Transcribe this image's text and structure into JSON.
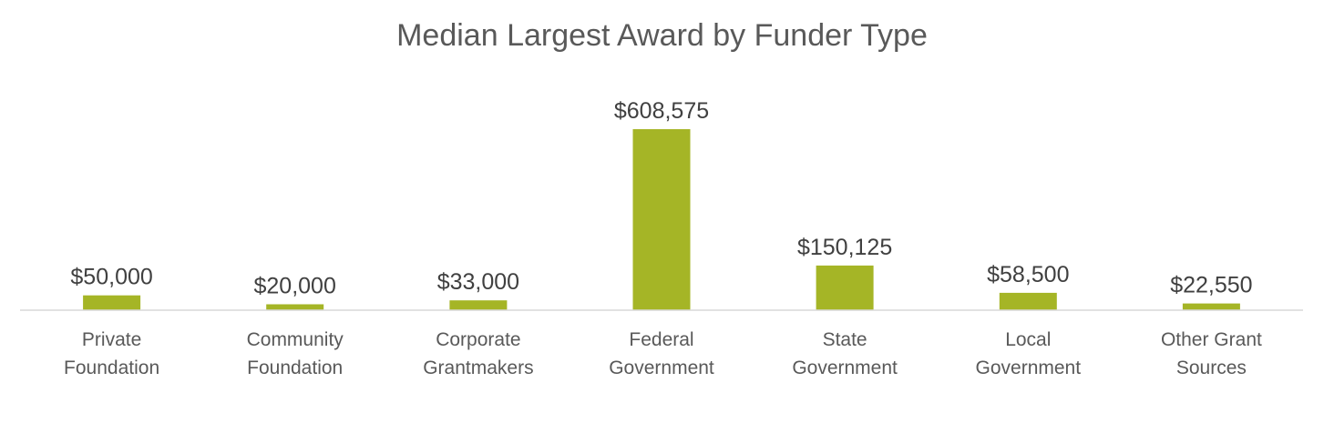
{
  "chart_data": {
    "type": "bar",
    "title": "Median Largest Award by Funder Type",
    "xlabel": "",
    "ylabel": "",
    "categories": [
      [
        "Private",
        "Foundation"
      ],
      [
        "Community",
        "Foundation"
      ],
      [
        "Corporate",
        "Grantmakers"
      ],
      [
        "Federal",
        "Government"
      ],
      [
        "State",
        "Government"
      ],
      [
        "Local",
        "Government"
      ],
      [
        "Other Grant",
        "Sources"
      ]
    ],
    "values": [
      50000,
      20000,
      33000,
      608575,
      150125,
      58500,
      22550
    ],
    "data_labels": [
      "$50,000",
      "$20,000",
      "$33,000",
      "$608,575",
      "$150,125",
      "$58,500",
      "$22,550"
    ],
    "ylim": [
      0,
      608575
    ],
    "grid": false,
    "legend": "none",
    "bar_color": "#a5b526",
    "axis_color": "#d9d9d9"
  }
}
